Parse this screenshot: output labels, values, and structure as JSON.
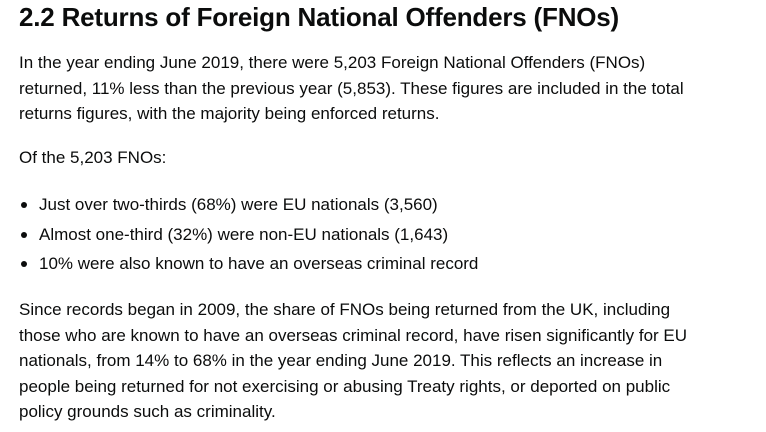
{
  "heading": "2.2 Returns of Foreign National Offenders (FNOs)",
  "paragraph1": [
    "In the year ending June 2019, there were 5,203 Foreign National Offenders (FNOs)",
    "returned, 11% less than the previous year (5,853). These figures are included in the total",
    "returns figures, with the majority being enforced returns."
  ],
  "paragraph2": "Of the 5,203 FNOs:",
  "bullets": [
    "Just over two-thirds (68%) were EU nationals (3,560)",
    "Almost one-third (32%) were non-EU nationals (1,643)",
    "10% were also known to have an overseas criminal record"
  ],
  "paragraph3": [
    "Since records began in 2009, the share of FNOs being returned from the UK, including",
    "those who are known to have an overseas criminal record, have risen significantly for EU",
    "nationals, from 14% to 68% in the year ending June 2019. This reflects an increase in",
    "people being returned for not exercising or abusing Treaty rights, or deported on public",
    "policy grounds such as criminality."
  ]
}
